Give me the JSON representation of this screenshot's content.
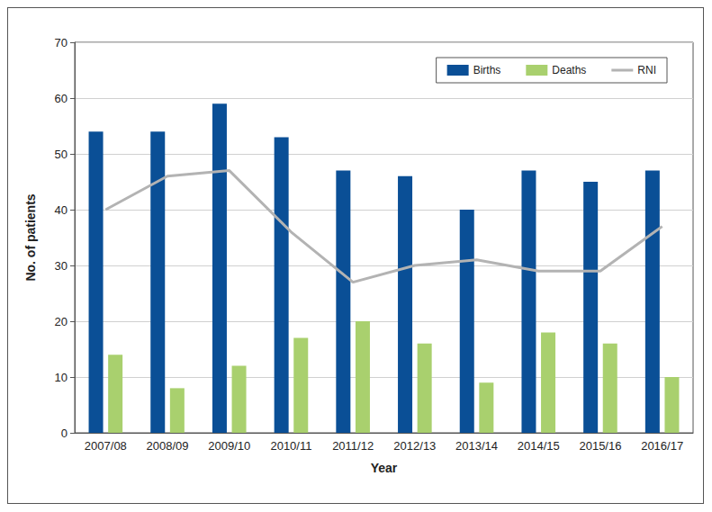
{
  "chart_data": {
    "type": "bar",
    "x_label": "Year",
    "y_label": "No. of patients",
    "categories": [
      "2007/08",
      "2008/09",
      "2009/10",
      "2010/11",
      "2011/12",
      "2012/13",
      "2013/14",
      "2014/15",
      "2015/16",
      "2016/17"
    ],
    "series": [
      {
        "name": "Births",
        "type": "bar",
        "color": "#0a4f96",
        "values": [
          54,
          54,
          59,
          53,
          47,
          46,
          40,
          47,
          45,
          47
        ]
      },
      {
        "name": "Deaths",
        "type": "bar",
        "color": "#a9d06e",
        "values": [
          14,
          8,
          12,
          17,
          20,
          16,
          9,
          18,
          16,
          10
        ]
      },
      {
        "name": "RNI",
        "type": "line",
        "color": "#b3b3b3",
        "values": [
          40,
          46,
          47,
          36,
          27,
          30,
          31,
          29,
          29,
          37
        ]
      }
    ],
    "ylim": [
      0,
      70
    ],
    "yticks": [
      0,
      10,
      20,
      30,
      40,
      50,
      60,
      70
    ],
    "grid": true,
    "legend": "top-right"
  }
}
